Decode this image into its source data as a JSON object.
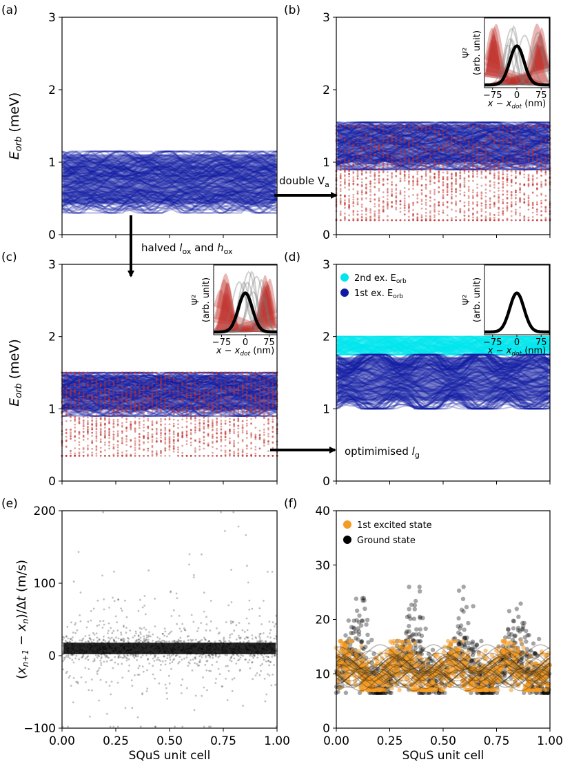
{
  "figure": {
    "arrow_b_label": "double V",
    "arrow_b_sub": "a",
    "arrow_c_pre": "halved ",
    "arrow_c_l": "l",
    "arrow_c_lsub": "ox",
    "arrow_c_and": " and ",
    "arrow_c_h": "h",
    "arrow_c_hsub": "ox",
    "arrow_d_label": "optimimised ",
    "arrow_d_l": "l",
    "arrow_d_sub": "g"
  },
  "colors": {
    "navy": "#0f1aa0",
    "red": "#c0302c",
    "cyan": "#00e5ee",
    "orange": "#f59a23",
    "black": "#000000"
  },
  "chart_data": [
    {
      "panel": "(a)",
      "type": "scatter",
      "ylabel": "E_orb (meV)",
      "ylim": [
        0,
        3
      ],
      "xlim": [
        0,
        1
      ],
      "yticks": [
        "0",
        "1",
        "2",
        "3"
      ],
      "series": [
        {
          "color": "navy",
          "band": [
            0.3,
            1.15
          ],
          "mean": 0.75
        }
      ]
    },
    {
      "panel": "(b)",
      "type": "scatter",
      "ylim": [
        0,
        3
      ],
      "xlim": [
        0,
        1
      ],
      "yticks": [
        "0",
        "1",
        "2",
        "3"
      ],
      "series": [
        {
          "color": "navy",
          "band": [
            0.9,
            1.55
          ]
        },
        {
          "color": "red",
          "band": [
            0.2,
            1.5
          ]
        }
      ],
      "inset": {
        "ylabel": "Ψ²",
        "ylabel2": "(arb. unit)",
        "xlabel": "x − x_dot (nm)",
        "xticks": [
          "−75",
          "0",
          "75"
        ]
      }
    },
    {
      "panel": "(c)",
      "type": "scatter",
      "ylabel": "E_orb (meV)",
      "ylim": [
        0,
        3
      ],
      "xlim": [
        0,
        1
      ],
      "yticks": [
        "0",
        "1",
        "2",
        "3"
      ],
      "series": [
        {
          "color": "navy",
          "band": [
            0.9,
            1.5
          ]
        },
        {
          "color": "red",
          "band": [
            0.35,
            1.5
          ]
        }
      ],
      "inset": {
        "ylabel": "Ψ²",
        "ylabel2": "(arb. unit)",
        "xlabel": "x − x_dot (nm)",
        "xticks": [
          "−75",
          "0",
          "75"
        ]
      }
    },
    {
      "panel": "(d)",
      "type": "scatter",
      "ylim": [
        0,
        3
      ],
      "xlim": [
        0,
        1
      ],
      "yticks": [
        "0",
        "1",
        "2",
        "3"
      ],
      "legend": [
        "2nd ex. E",
        "1st ex. E"
      ],
      "legend_sub": "orb",
      "legend_position": "top-left",
      "series": [
        {
          "name": "2nd ex. Eorb",
          "color": "cyan",
          "band": [
            1.75,
            2.0
          ]
        },
        {
          "name": "1st ex. Eorb",
          "color": "navy",
          "band": [
            1.0,
            1.75
          ],
          "oscillation_periods": 4
        }
      ],
      "inset": {
        "ylabel": "Ψ²",
        "ylabel2": "(arb. unit)",
        "xlabel": "x − x_dot (nm)",
        "xticks": [
          "−75",
          "0",
          "75"
        ]
      }
    },
    {
      "panel": "(e)",
      "type": "scatter",
      "ylabel": "(x_{n+1} − x_n)/Δt (m/s)",
      "xlabel": "SQuS unit cell",
      "ylim": [
        -100,
        200
      ],
      "xlim": [
        0,
        1
      ],
      "yticks": [
        "−100",
        "0",
        "100",
        "200"
      ],
      "xticks": [
        "0.00",
        "0.25",
        "0.50",
        "0.75",
        "1.00"
      ],
      "series": [
        {
          "color": "black",
          "center": 10,
          "core_halfwidth": 8
        }
      ]
    },
    {
      "panel": "(f)",
      "type": "scatter",
      "xlabel": "SQuS unit cell",
      "ylim": [
        0,
        40
      ],
      "xlim": [
        0,
        1
      ],
      "yticks": [
        "0",
        "10",
        "20",
        "30",
        "40"
      ],
      "xticks": [
        "0.00",
        "0.25",
        "0.50",
        "0.75",
        "1.00"
      ],
      "legend": [
        "1st excited state",
        "Ground state"
      ],
      "legend_position": "top-left",
      "series": [
        {
          "name": "1st excited state",
          "color": "orange",
          "band": [
            7,
            16
          ]
        },
        {
          "name": "Ground state",
          "color": "black",
          "band": [
            7,
            25
          ],
          "peaks": [
            0.12,
            0.38,
            0.62,
            0.88
          ]
        }
      ]
    }
  ]
}
